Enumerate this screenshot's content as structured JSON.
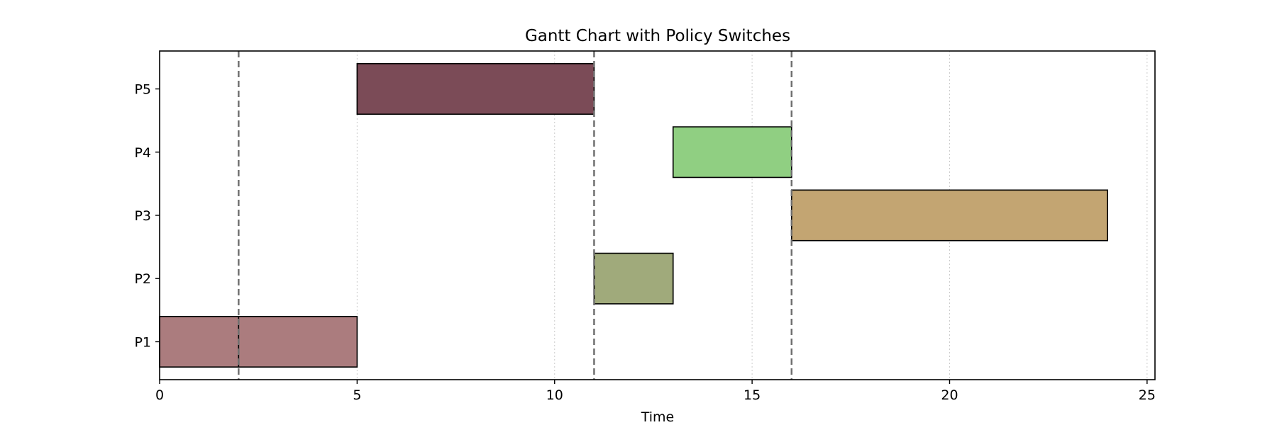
{
  "chart_data": {
    "type": "gantt",
    "title": "Gantt Chart with Policy Switches",
    "xlabel": "Time",
    "ylabel": "",
    "xlim": [
      0,
      25.2
    ],
    "xticks": [
      0,
      5,
      10,
      15,
      20,
      25
    ],
    "categories": [
      "P1",
      "P2",
      "P3",
      "P4",
      "P5"
    ],
    "grid": "x-dotted",
    "tasks": [
      {
        "category": "P1",
        "start": 0,
        "end": 2,
        "color": "#ab7c7e"
      },
      {
        "category": "P1",
        "start": 2,
        "end": 5,
        "color": "#ab7c7e"
      },
      {
        "category": "P5",
        "start": 5,
        "end": 11,
        "color": "#7b4b57"
      },
      {
        "category": "P2",
        "start": 11,
        "end": 13,
        "color": "#a0aa7b"
      },
      {
        "category": "P4",
        "start": 13,
        "end": 16,
        "color": "#90cf82"
      },
      {
        "category": "P3",
        "start": 16,
        "end": 24,
        "color": "#c3a572"
      }
    ],
    "policy_switches": [
      2,
      11,
      16
    ],
    "switch_line_color": "#707070"
  }
}
